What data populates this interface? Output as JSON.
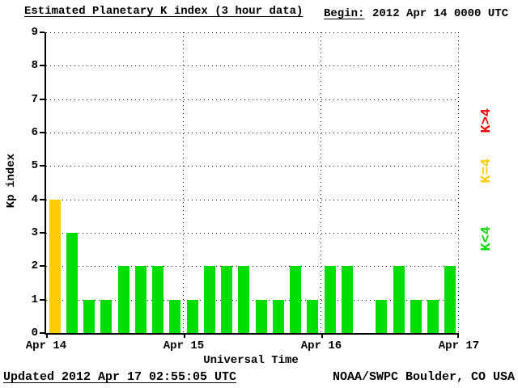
{
  "header": {
    "title": "Estimated Planetary K index (3 hour data)",
    "begin_label": "Begin:",
    "begin_value": "2012 Apr 14 0000 UTC"
  },
  "legend": [
    {
      "label": "K>4",
      "color": "#ff0000"
    },
    {
      "label": "K=4",
      "color": "#ffcc00"
    },
    {
      "label": "K<4",
      "color": "#00dd00"
    }
  ],
  "footer": {
    "updated": "Updated 2012 Apr 17 02:55:05 UTC",
    "source": "NOAA/SWPC Boulder, CO USA"
  },
  "chart_data": {
    "type": "bar",
    "title": "Estimated Planetary K index (3 hour data)",
    "xlabel": "Universal Time",
    "ylabel": "Kp index",
    "ylim": [
      0,
      9
    ],
    "y_ticks": [
      0,
      1,
      2,
      3,
      4,
      5,
      6,
      7,
      8,
      9
    ],
    "x_tick_labels": [
      "Apr 14",
      "Apr 15",
      "Apr 16",
      "Apr 17"
    ],
    "bars_per_day": 8,
    "hours_per_bar": 3,
    "values": [
      4,
      3,
      1,
      1,
      2,
      2,
      2,
      1,
      1,
      2,
      2,
      2,
      1,
      1,
      2,
      1,
      2,
      2,
      0,
      1,
      2,
      1,
      1,
      2
    ],
    "color_rule": {
      "gt4": "#ff0000",
      "eq4": "#ffcc00",
      "lt4": "#00dd00"
    },
    "grid": "dotted",
    "legend_position": "right"
  }
}
